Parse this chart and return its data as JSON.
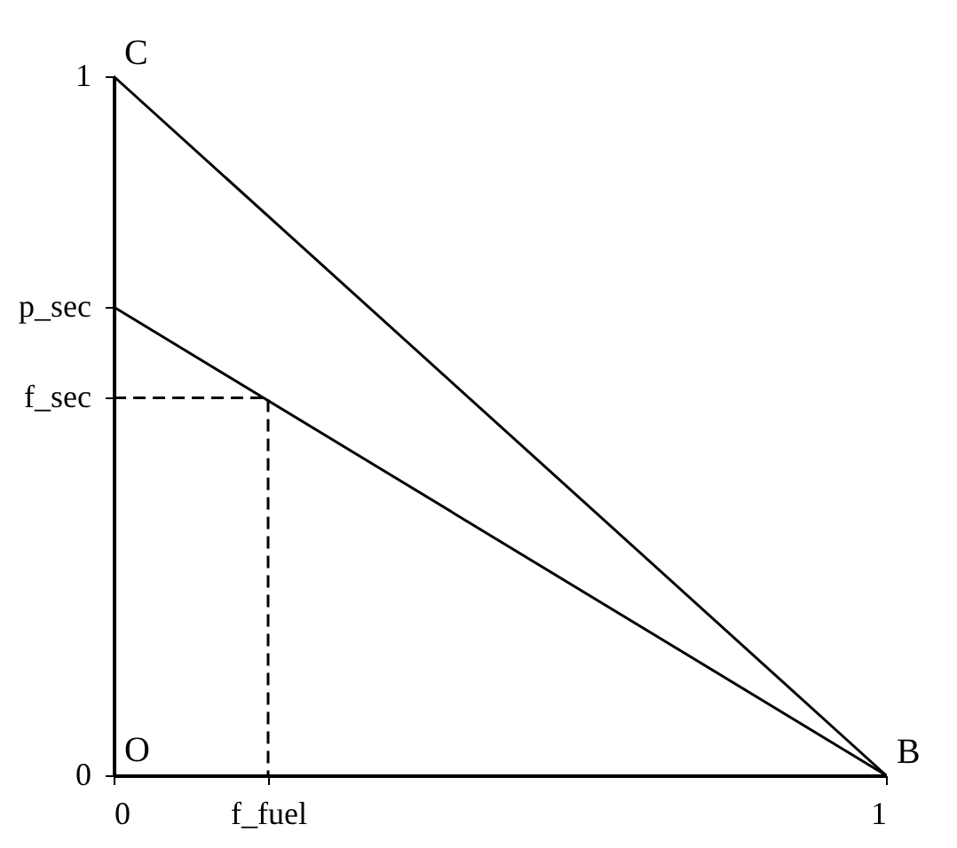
{
  "chart_data": {
    "type": "line",
    "series": [
      {
        "color": "#000000",
        "x": [
          0,
          1
        ],
        "values": [
          1,
          0
        ],
        "line_style": "solid"
      },
      {
        "color": "#000000",
        "x": [
          0,
          1
        ],
        "values": [
          0.67,
          0
        ],
        "line_style": "solid"
      },
      {
        "color": "#000000",
        "x": [
          0,
          0.2,
          0.2
        ],
        "values": [
          0.54,
          0.54,
          0
        ],
        "line_style": "dashed"
      }
    ],
    "xlim": [
      0,
      1
    ],
    "ylim": [
      0,
      1
    ],
    "xticks": [
      0,
      {
        "value": 0.2,
        "label": "f_fuel"
      },
      1
    ],
    "yticks": [
      0,
      {
        "value": 0.54,
        "label": "f_sec"
      },
      {
        "value": 0.67,
        "label": "p_sec"
      },
      1
    ],
    "annotations": [
      {
        "text": "C",
        "x": 0,
        "y": 1
      },
      {
        "text": "B",
        "x": 1,
        "y": 0
      },
      "O"
    ],
    "grid": false,
    "marker": "none"
  }
}
